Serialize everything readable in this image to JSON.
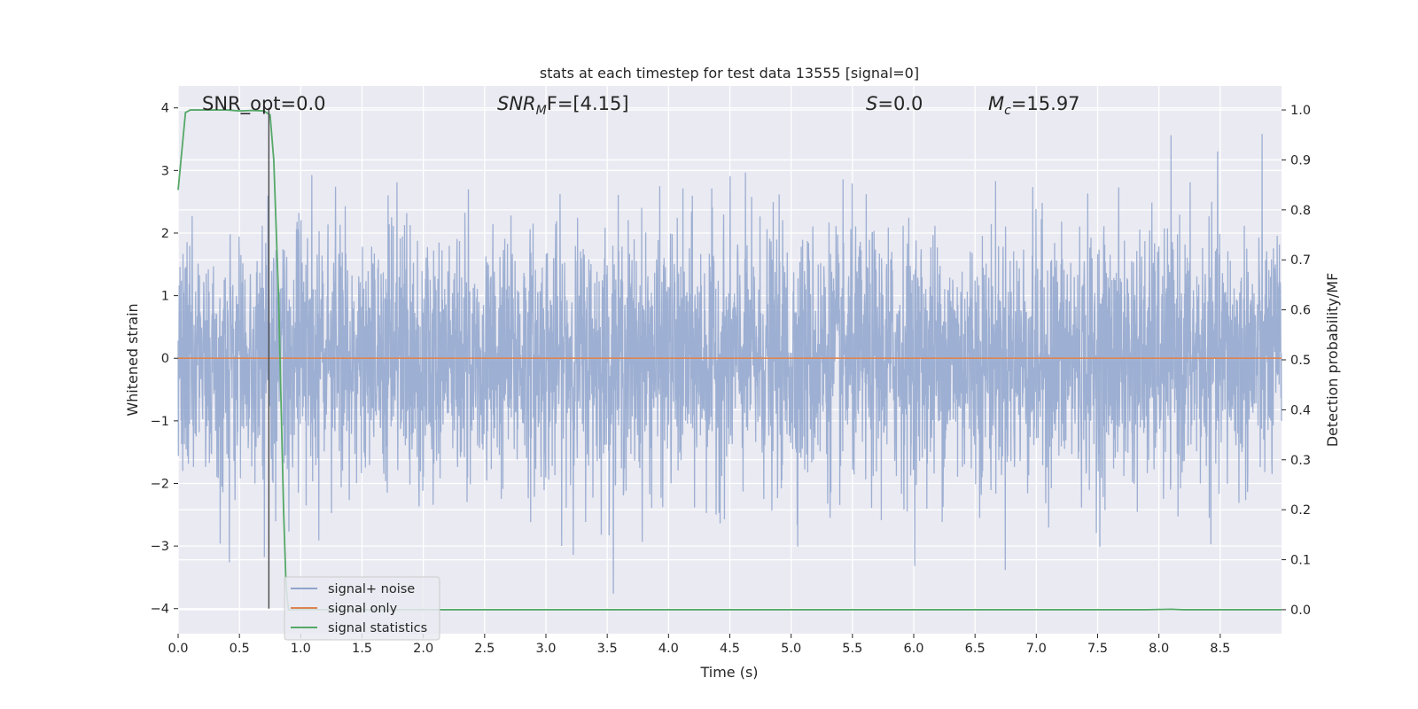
{
  "chart_data": {
    "type": "line",
    "title": "stats at each timestep for test data 13555 [signal=0]",
    "xlabel": "Time (s)",
    "ylabel": "Whitened strain",
    "ylabel_right": "Detection probability/MF",
    "xlim": [
      0.0,
      9.0
    ],
    "ylim": [
      -4.4,
      4.35
    ],
    "ylim_right": [
      -0.048,
      1.048
    ],
    "x_ticks": [
      "0.0",
      "0.5",
      "1.0",
      "1.5",
      "2.0",
      "2.5",
      "3.0",
      "3.5",
      "4.0",
      "4.5",
      "5.0",
      "5.5",
      "6.0",
      "6.5",
      "7.0",
      "7.5",
      "8.0",
      "8.5"
    ],
    "y_ticks": [
      "4",
      "3",
      "2",
      "1",
      "0",
      "−1",
      "−2",
      "−3",
      "−4"
    ],
    "y_ticks_right": [
      "1.0",
      "0.9",
      "0.8",
      "0.7",
      "0.6",
      "0.5",
      "0.4",
      "0.3",
      "0.2",
      "0.1",
      "0.0"
    ],
    "grid": true,
    "legend_position": "lower-left",
    "annotations": {
      "snr_opt": "SNR_opt=0.0",
      "snr_mf_sym": "SNR",
      "snr_mf_sub": "M",
      "snr_mf_tail": "F=[4.15]",
      "s_sym": "S",
      "s_tail": "=0.0",
      "mc_sym": "M",
      "mc_sub": "c",
      "mc_tail": "=15.97"
    },
    "marker_line_x": 0.74,
    "series": [
      {
        "name": "signal+ noise",
        "color": "#8fa4cc",
        "description_values": "whitened noise, ~4096 samples, amplitude within ±4",
        "sample_rate": 455,
        "noise_sigma": 1.0
      },
      {
        "name": "signal only",
        "color": "#dd8452",
        "x": [
          0.0,
          9.0
        ],
        "y": [
          0.0,
          0.0
        ]
      },
      {
        "name": "signal statistics",
        "color": "#55a868",
        "axis": "right",
        "x": [
          0.0,
          0.06,
          0.1,
          0.15,
          0.2,
          0.3,
          0.4,
          0.5,
          0.6,
          0.7,
          0.75,
          0.78,
          0.82,
          0.86,
          0.88,
          0.9,
          1.0,
          2.0,
          3.0,
          4.0,
          5.0,
          6.0,
          7.0,
          7.9,
          8.1,
          8.2,
          9.0
        ],
        "y": [
          0.84,
          0.995,
          1.0,
          1.0,
          1.0,
          1.0,
          1.0,
          0.998,
          0.999,
          0.998,
          0.99,
          0.9,
          0.62,
          0.2,
          0.05,
          0.0,
          0.0,
          0.0,
          0.0,
          0.0,
          0.0,
          0.0,
          0.0,
          0.0,
          0.001,
          0.0,
          0.0
        ]
      }
    ]
  }
}
